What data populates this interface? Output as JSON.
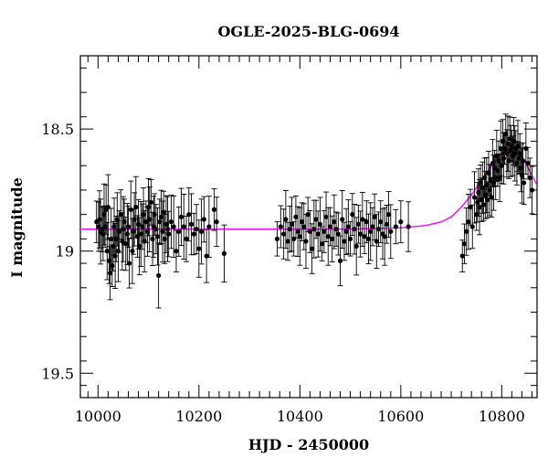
{
  "chart_data": {
    "type": "scatter",
    "title": "OGLE-2025-BLG-0694",
    "xlabel": "HJD - 2450000",
    "ylabel": "I magnitude",
    "xlim": [
      9965,
      10870
    ],
    "ylim": [
      19.6,
      18.2
    ],
    "y_inverted": true,
    "x_ticks": [
      10000,
      10200,
      10400,
      10600,
      10800
    ],
    "x_tick_labels": [
      "10000",
      "10200",
      "10400",
      "10600",
      "10800"
    ],
    "y_ticks": [
      18.5,
      19,
      19.5
    ],
    "y_tick_labels": [
      "18.5",
      "19",
      "19.5"
    ],
    "grid": false,
    "colors": {
      "points": "#000000",
      "model": "#ff00ff",
      "frame": "#000000"
    },
    "model": {
      "name": "",
      "x": [
        9965,
        10100,
        10300,
        10500,
        10600,
        10650,
        10680,
        10700,
        10720,
        10740,
        10760,
        10780,
        10800,
        10815,
        10825,
        10835,
        10845,
        10855,
        10870
      ],
      "y": [
        18.91,
        18.91,
        18.91,
        18.91,
        18.905,
        18.895,
        18.88,
        18.86,
        18.82,
        18.77,
        18.71,
        18.65,
        18.6,
        18.58,
        18.58,
        18.6,
        18.63,
        18.67,
        18.73
      ]
    },
    "series": [
      {
        "x": [
          9997,
          10001,
          10003,
          10005,
          10008,
          10010,
          10012,
          10014,
          10016,
          10018,
          10020,
          10022,
          10024,
          10026,
          10028,
          10030,
          10032,
          10034,
          10036,
          10038,
          10040,
          10042,
          10045,
          10048,
          10050,
          10052,
          10055,
          10058,
          10060,
          10062,
          10065,
          10068,
          10070,
          10072,
          10075,
          10078,
          10080,
          10082,
          10085,
          10088,
          10090,
          10092,
          10095,
          10098,
          10100,
          10102,
          10105,
          10108,
          10110,
          10112,
          10115,
          10118,
          10120,
          10122,
          10125,
          10128,
          10130,
          10132,
          10135,
          10138,
          10140,
          10145,
          10150,
          10155,
          10160,
          10165,
          10170,
          10175,
          10180,
          10185,
          10190,
          10195,
          10200,
          10205,
          10210,
          10215,
          10220,
          10230,
          10235,
          10250
        ],
        "y": [
          18.88,
          18.9,
          18.87,
          18.92,
          18.91,
          18.93,
          18.85,
          18.9,
          18.83,
          19.0,
          18.82,
          19.04,
          19.09,
          18.95,
          19.06,
          18.98,
          18.9,
          19.02,
          18.95,
          18.87,
          19.0,
          18.92,
          18.85,
          18.96,
          18.91,
          18.88,
          18.97,
          18.93,
          18.9,
          19.05,
          18.83,
          19.0,
          18.92,
          18.87,
          18.82,
          18.94,
          18.89,
          18.98,
          18.93,
          18.9,
          18.85,
          18.96,
          18.88,
          18.92,
          18.82,
          18.87,
          18.8,
          18.95,
          18.9,
          18.85,
          18.91,
          18.94,
          19.1,
          18.88,
          18.86,
          18.92,
          18.84,
          18.95,
          18.89,
          18.91,
          18.93,
          18.88,
          18.9,
          19.0,
          18.92,
          18.86,
          18.9,
          18.95,
          18.85,
          18.89,
          18.93,
          18.91,
          18.99,
          18.92,
          18.87,
          19.02,
          18.9,
          18.83,
          18.88,
          19.01
        ]
      },
      {
        "x": [
          10355,
          10362,
          10368,
          10372,
          10376,
          10380,
          10384,
          10388,
          10392,
          10396,
          10400,
          10404,
          10408,
          10412,
          10416,
          10420,
          10424,
          10428,
          10432,
          10436,
          10440,
          10444,
          10448,
          10452,
          10456,
          10460,
          10464,
          10468,
          10472,
          10476,
          10480,
          10484,
          10488,
          10492,
          10496,
          10500,
          10504,
          10508,
          10512,
          10516,
          10520,
          10524,
          10528,
          10532,
          10536,
          10540,
          10544,
          10548,
          10552,
          10556,
          10560,
          10564,
          10568,
          10572,
          10576,
          10580,
          10590,
          10600,
          10615
        ],
        "y": [
          18.95,
          18.9,
          18.93,
          18.87,
          18.96,
          18.91,
          18.89,
          18.95,
          18.86,
          18.92,
          18.94,
          18.88,
          18.9,
          18.96,
          18.85,
          18.92,
          18.99,
          18.91,
          18.87,
          18.93,
          18.89,
          18.97,
          18.92,
          18.86,
          18.94,
          18.9,
          18.95,
          18.88,
          18.91,
          18.93,
          19.04,
          18.87,
          18.96,
          18.92,
          18.9,
          18.95,
          18.85,
          18.91,
          18.98,
          18.89,
          18.93,
          18.87,
          18.94,
          18.88,
          18.95,
          18.92,
          18.9,
          18.86,
          18.96,
          18.91,
          18.88,
          18.93,
          18.94,
          18.89,
          18.85,
          18.92,
          18.9,
          18.88,
          18.9
        ]
      },
      {
        "x": [
          10722,
          10726,
          10730,
          10734,
          10738,
          10742,
          10746,
          10750,
          10752,
          10754,
          10756,
          10758,
          10760,
          10762,
          10764,
          10766,
          10768,
          10770,
          10772,
          10774,
          10776,
          10778,
          10780,
          10782,
          10784,
          10786,
          10788,
          10790,
          10792,
          10794,
          10796,
          10798,
          10800,
          10802,
          10804,
          10806,
          10808,
          10810,
          10812,
          10814,
          10816,
          10818,
          10820,
          10822,
          10824,
          10826,
          10828,
          10830,
          10832,
          10834,
          10836,
          10838,
          10840,
          10842,
          10844,
          10848,
          10852,
          10856,
          10860
        ],
        "y": [
          19.02,
          18.97,
          18.92,
          18.88,
          18.82,
          18.9,
          18.78,
          18.85,
          18.8,
          18.76,
          18.82,
          18.72,
          18.79,
          18.74,
          18.81,
          18.7,
          18.77,
          18.73,
          18.79,
          18.68,
          18.75,
          18.71,
          18.78,
          18.64,
          18.72,
          18.66,
          18.7,
          18.61,
          18.67,
          18.63,
          18.7,
          18.58,
          18.65,
          18.55,
          18.62,
          18.58,
          18.52,
          18.6,
          18.56,
          18.63,
          18.54,
          18.59,
          18.57,
          18.61,
          18.55,
          18.6,
          18.58,
          18.64,
          18.57,
          18.62,
          18.6,
          18.66,
          18.69,
          18.63,
          18.72,
          18.58,
          18.64,
          18.7,
          18.75
        ]
      }
    ]
  }
}
